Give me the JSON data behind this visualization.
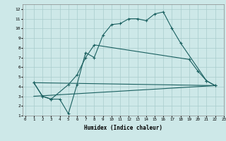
{
  "bg_color": "#cde8e8",
  "grid_color": "#a8cccc",
  "line_color": "#1a6060",
  "line1_x": [
    1,
    2,
    3,
    4,
    5,
    6,
    7,
    8,
    9,
    10,
    11,
    12,
    13,
    14,
    15,
    16,
    17,
    18,
    21,
    22
  ],
  "line1_y": [
    4.4,
    3.0,
    2.7,
    2.7,
    1.2,
    4.2,
    7.5,
    7.0,
    9.3,
    10.4,
    10.5,
    11.0,
    11.0,
    10.8,
    11.5,
    11.7,
    10.0,
    8.5,
    4.6,
    4.1
  ],
  "line2_x": [
    1,
    2,
    3,
    5,
    6,
    7,
    8,
    19,
    20,
    21,
    22
  ],
  "line2_y": [
    4.4,
    3.0,
    2.7,
    4.2,
    5.2,
    7.0,
    8.3,
    6.8,
    5.6,
    4.6,
    4.1
  ],
  "line3_x": [
    1,
    22
  ],
  "line3_y": [
    4.4,
    4.1
  ],
  "line4_x": [
    1,
    22
  ],
  "line4_y": [
    3.0,
    4.1
  ],
  "xlim": [
    -0.3,
    23
  ],
  "ylim": [
    1,
    12.5
  ],
  "xticks": [
    0,
    1,
    2,
    3,
    4,
    5,
    6,
    7,
    8,
    9,
    10,
    11,
    12,
    13,
    14,
    15,
    16,
    17,
    18,
    19,
    20,
    21,
    22,
    23
  ],
  "yticks": [
    1,
    2,
    3,
    4,
    5,
    6,
    7,
    8,
    9,
    10,
    11,
    12
  ],
  "xlabel": "Humidex (Indice chaleur)"
}
